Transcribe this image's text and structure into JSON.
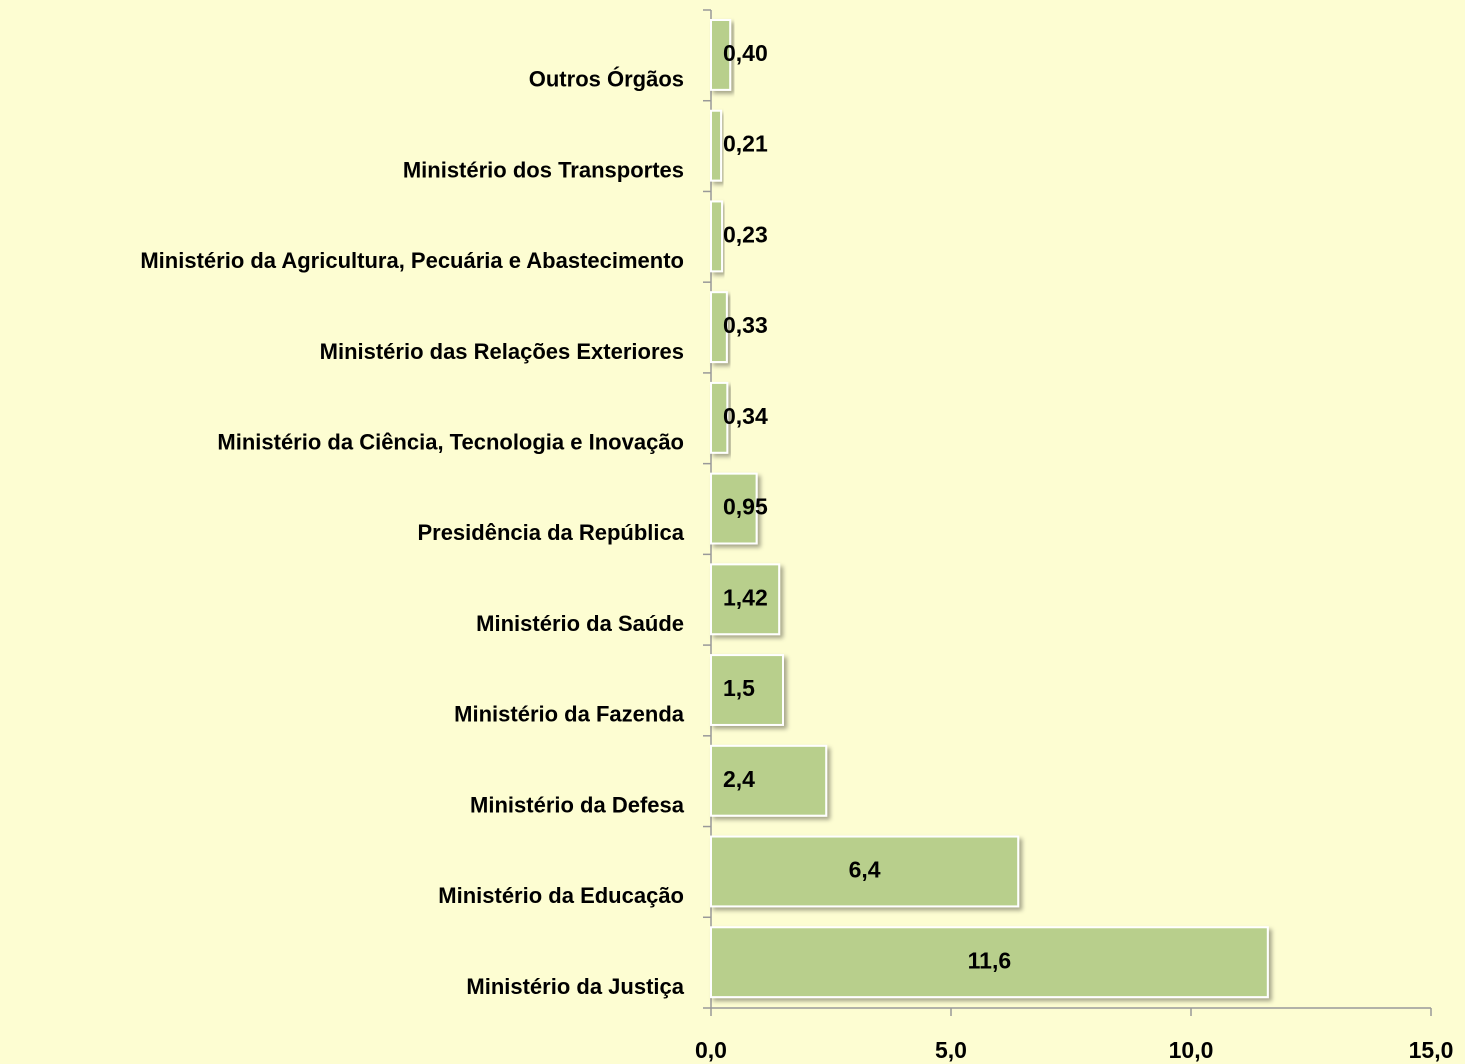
{
  "chart_data": {
    "type": "bar",
    "orientation": "horizontal",
    "categories": [
      "Outros Órgãos",
      "Ministério dos Transportes",
      "Ministério da Agricultura, Pecuária e Abastecimento",
      "Ministério das Relações Exteriores",
      "Ministério da Ciência, Tecnologia e Inovação",
      "Presidência da República",
      "Ministério da Saúde",
      "Ministério da Fazenda",
      "Ministério da Defesa",
      "Ministério da Educação",
      "Ministério da Justiça"
    ],
    "values": [
      0.4,
      0.21,
      0.23,
      0.33,
      0.34,
      0.95,
      1.42,
      1.5,
      2.4,
      6.4,
      11.6
    ],
    "value_labels": [
      "0,40",
      "0,21",
      "0,23",
      "0,33",
      "0,34",
      "0,95",
      "1,42",
      "1,5",
      "2,4",
      "6,4",
      "11,6"
    ],
    "color": "#b8cf8c",
    "xlim": [
      0,
      15
    ],
    "xticks": [
      {
        "value": 0,
        "label": "0,0"
      },
      {
        "value": 5,
        "label": "5,0"
      },
      {
        "value": 10,
        "label": "10,0"
      },
      {
        "value": 15,
        "label": "15,0"
      }
    ],
    "grid": false
  }
}
